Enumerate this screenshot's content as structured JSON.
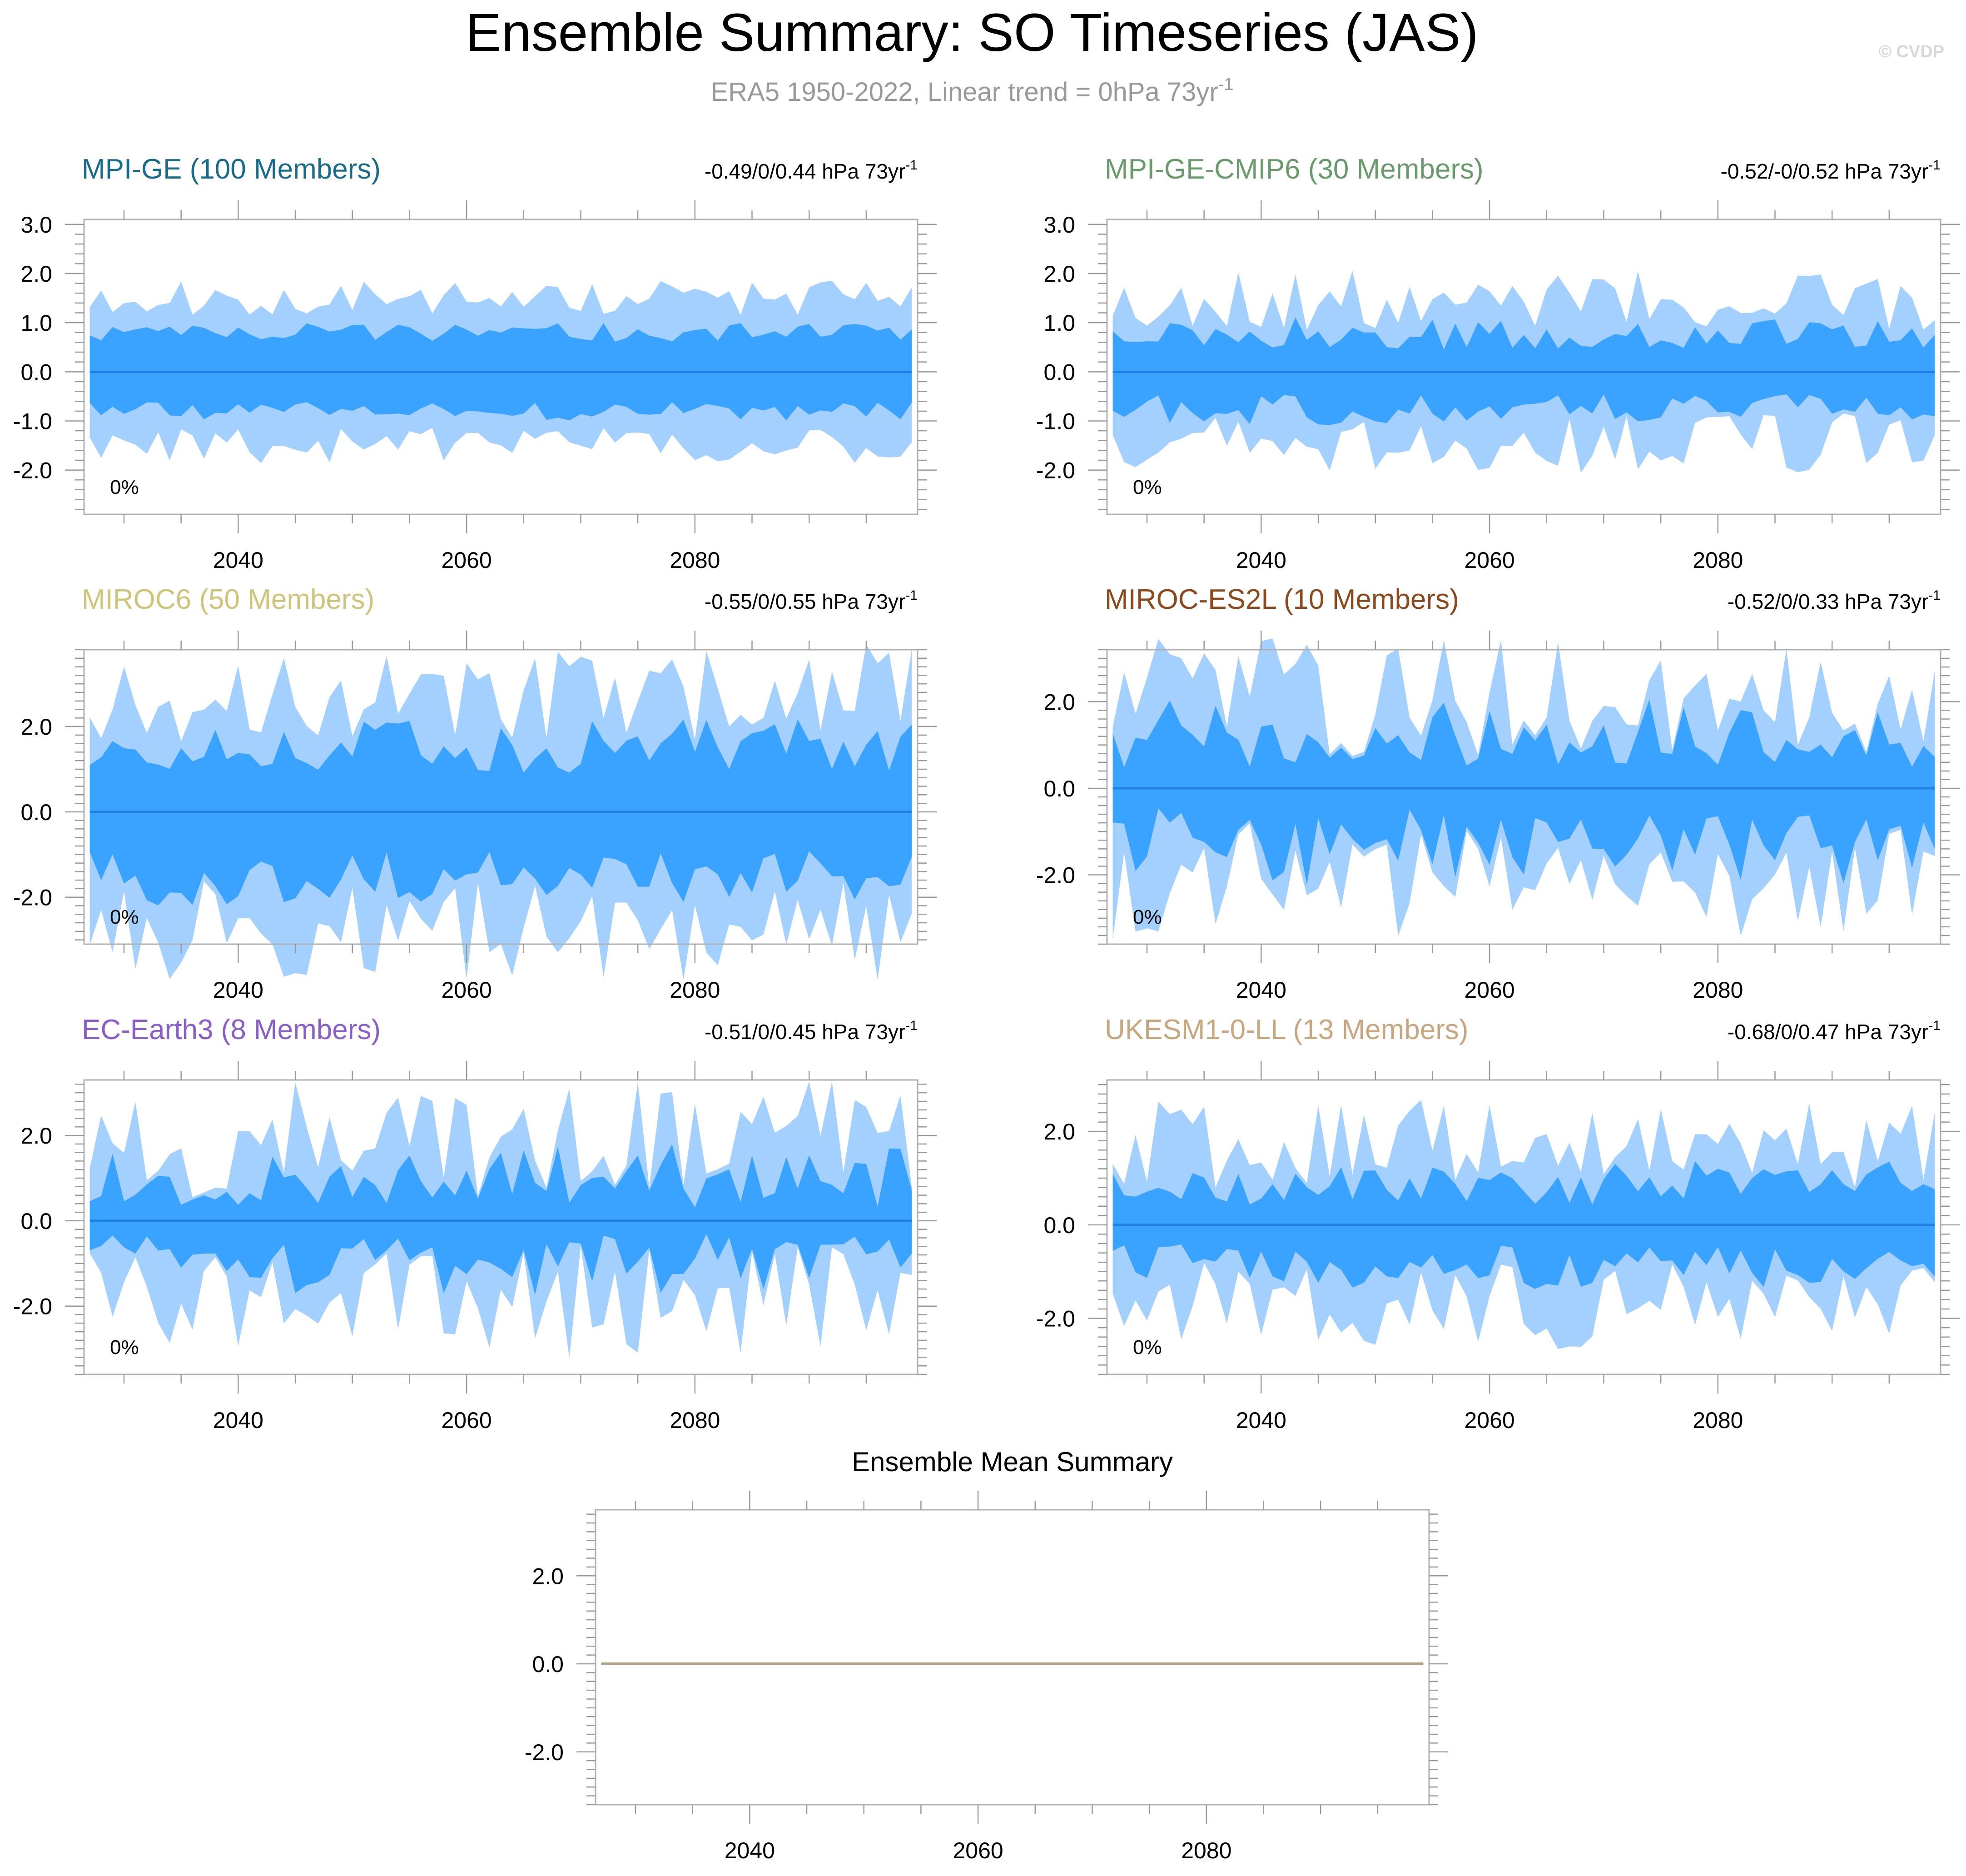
{
  "title": "Ensemble Summary: SO Timeseries (JAS)",
  "subtitle": {
    "text": "ERA5 1950-2022, Linear trend = 0hPa 73yr",
    "sup": "-1"
  },
  "watermark": "© CVDP",
  "colors": {
    "outer_band": "#a3d0ff",
    "inner_band": "#3aa3ff",
    "mean_line": "#1f7fe6",
    "frame": "#b0b0b0",
    "tick": "#9a9a9a",
    "text": "#000000",
    "subtitle": "#999999",
    "summary_line": "#b2a28a"
  },
  "chart_data": [
    {
      "type": "area",
      "id": "mpi-ge",
      "title": "MPI-GE (100 Members)",
      "title_color": "#1a6a8e",
      "trend_text": "-0.49/0/0.44 hPa 73yr",
      "trend_sup": "-1",
      "percent_text": "0%",
      "xlim": [
        2026.5,
        2099.5
      ],
      "ylim": [
        -2.9,
        3.1
      ],
      "yticks": [
        -2.0,
        -1.0,
        0.0,
        1.0,
        2.0,
        3.0
      ],
      "ytick_labels": [
        "-2.0",
        "-1.0",
        "0.0",
        "1.0",
        "2.0",
        "3.0"
      ],
      "xticks": [
        2040,
        2060,
        2080
      ],
      "xtick_labels": [
        "2040",
        "2060",
        "2080"
      ],
      "x_start": 2027,
      "x_end": 2099,
      "amp_outer": 1.5,
      "amp_inner": 0.8,
      "var": 0.2,
      "seed": 11
    },
    {
      "type": "area",
      "id": "mpi-ge-cmip6",
      "title": "MPI-GE-CMIP6 (30 Members)",
      "title_color": "#6a9a6c",
      "trend_text": "-0.52/-0/0.52 hPa 73yr",
      "trend_sup": "-1",
      "percent_text": "0%",
      "xlim": [
        2026.5,
        2099.5
      ],
      "ylim": [
        -2.9,
        3.1
      ],
      "yticks": [
        -2.0,
        -1.0,
        0.0,
        1.0,
        2.0,
        3.0
      ],
      "ytick_labels": [
        "-2.0",
        "-1.0",
        "0.0",
        "1.0",
        "2.0",
        "3.0"
      ],
      "xticks": [
        2040,
        2060,
        2080
      ],
      "xtick_labels": [
        "2040",
        "2060",
        "2080"
      ],
      "x_start": 2027,
      "x_end": 2099,
      "amp_outer": 1.45,
      "amp_inner": 0.78,
      "var": 0.35,
      "seed": 23
    },
    {
      "type": "area",
      "id": "miroc6",
      "title": "MIROC6 (50 Members)",
      "title_color": "#cfc57a",
      "trend_text": "-0.55/0/0.55 hPa 73yr",
      "trend_sup": "-1",
      "percent_text": "0%",
      "xlim": [
        2026.5,
        2099.5
      ],
      "ylim": [
        -3.1,
        3.8
      ],
      "yticks": [
        -2.0,
        0.0,
        2.0
      ],
      "ytick_labels": [
        "-2.0",
        "0.0",
        "2.0"
      ],
      "xticks": [
        2040,
        2060,
        2080
      ],
      "xtick_labels": [
        "2040",
        "2060",
        "2080"
      ],
      "x_start": 2027,
      "x_end": 2099,
      "amp_outer": 2.8,
      "amp_inner": 1.55,
      "var": 0.35,
      "seed": 37
    },
    {
      "type": "area",
      "id": "miroc-es2l",
      "title": "MIROC-ES2L (10 Members)",
      "title_color": "#8a4a1e",
      "trend_text": "-0.52/0/0.33 hPa 73yr",
      "trend_sup": "-1",
      "percent_text": "0%",
      "xlim": [
        2026.5,
        2099.5
      ],
      "ylim": [
        -3.6,
        3.2
      ],
      "yticks": [
        -2.0,
        0.0,
        2.0
      ],
      "ytick_labels": [
        "-2.0",
        "0.0",
        "2.0"
      ],
      "xticks": [
        2040,
        2060,
        2080
      ],
      "xtick_labels": [
        "2040",
        "2060",
        "2080"
      ],
      "x_start": 2027,
      "x_end": 2099,
      "amp_outer": 2.1,
      "amp_inner": 1.35,
      "var": 0.55,
      "seed": 41
    },
    {
      "type": "area",
      "id": "ec-earth3",
      "title": "EC-Earth3 (8 Members)",
      "title_color": "#8a5ec8",
      "trend_text": "-0.51/0/0.45 hPa 73yr",
      "trend_sup": "-1",
      "percent_text": "0%",
      "xlim": [
        2026.5,
        2099.5
      ],
      "ylim": [
        -3.6,
        3.3
      ],
      "yticks": [
        -2.0,
        0.0,
        2.0
      ],
      "ytick_labels": [
        "-2.0",
        "0.0",
        "2.0"
      ],
      "xticks": [
        2040,
        2060,
        2080
      ],
      "xtick_labels": [
        "2040",
        "2060",
        "2080"
      ],
      "x_start": 2027,
      "x_end": 2099,
      "amp_outer": 1.9,
      "amp_inner": 1.05,
      "var": 0.6,
      "seed": 53
    },
    {
      "type": "area",
      "id": "ukesm1-0-ll",
      "title": "UKESM1-0-LL (13 Members)",
      "title_color": "#c8a67e",
      "trend_text": "-0.68/0/0.47 hPa 73yr",
      "trend_sup": "-1",
      "percent_text": "0%",
      "xlim": [
        2026.5,
        2099.5
      ],
      "ylim": [
        -3.2,
        3.1
      ],
      "yticks": [
        -2.0,
        0.0,
        2.0
      ],
      "ytick_labels": [
        "-2.0",
        "0.0",
        "2.0"
      ],
      "xticks": [
        2040,
        2060,
        2080
      ],
      "xtick_labels": [
        "2040",
        "2060",
        "2080"
      ],
      "x_start": 2027,
      "x_end": 2099,
      "amp_outer": 1.75,
      "amp_inner": 0.9,
      "var": 0.45,
      "seed": 67
    },
    {
      "type": "line",
      "id": "ensemble-mean",
      "title": "Ensemble Mean Summary",
      "xlim": [
        2026.5,
        2099.5
      ],
      "ylim": [
        -3.2,
        3.5
      ],
      "yticks": [
        -2.0,
        0.0,
        2.0
      ],
      "ytick_labels": [
        "-2.0",
        "0.0",
        "2.0"
      ],
      "xticks": [
        2040,
        2060,
        2080
      ],
      "xtick_labels": [
        "2040",
        "2060",
        "2080"
      ],
      "x": [
        2027,
        2099
      ],
      "y": [
        0.0,
        0.0
      ]
    }
  ]
}
